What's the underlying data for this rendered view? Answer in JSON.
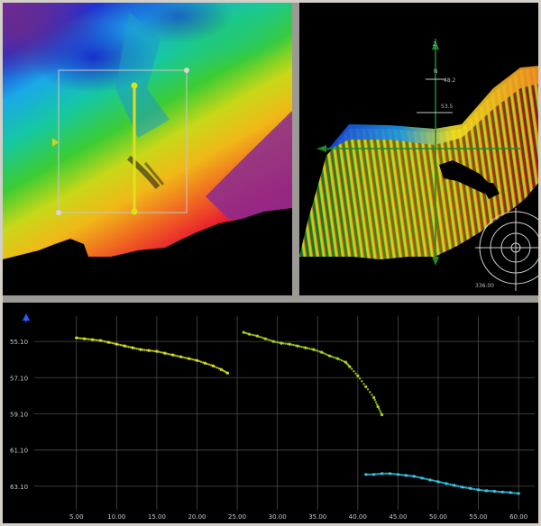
{
  "map_view": {
    "colors": {
      "terrain_black": "#000000",
      "selection_box": "#c8c8c8",
      "profile_line": "#e0e020"
    }
  },
  "view_3d": {
    "labels": {
      "z_axis": "Z",
      "n_axis": "N",
      "depth_a": "48.2",
      "depth_b": "53.5",
      "scale": "336.00"
    },
    "colors": {
      "axis_green": "#1f8a2a"
    }
  },
  "profile_plot": {
    "colors": {
      "axis_arrow": "#2a5cff",
      "grid": "#4a4a4a",
      "series_a": "#d8e020",
      "series_b": "#a8d820",
      "series_c": "#38c8e8"
    },
    "chart_data": {
      "type": "scatter",
      "xlim": [
        2,
        62
      ],
      "ylim": [
        54.2,
        64.4
      ],
      "y_inverted": true,
      "grid": true,
      "x_ticks": [
        "5.00",
        "10.00",
        "15.00",
        "20.00",
        "25.00",
        "30.00",
        "35.00",
        "40.00",
        "45.00",
        "50.00",
        "55.00",
        "60.00"
      ],
      "y_ticks": [
        "55.10",
        "57.10",
        "59.10",
        "61.10",
        "63.10"
      ],
      "series": [
        {
          "points": [
            [
              5.0,
              54.9
            ],
            [
              6.0,
              54.95
            ],
            [
              7.0,
              55.0
            ],
            [
              8.0,
              55.05
            ],
            [
              9.0,
              55.15
            ],
            [
              10.0,
              55.25
            ],
            [
              11.0,
              55.35
            ],
            [
              12.0,
              55.45
            ],
            [
              13.0,
              55.55
            ],
            [
              14.0,
              55.6
            ],
            [
              15.0,
              55.65
            ],
            [
              16.0,
              55.75
            ],
            [
              17.0,
              55.85
            ],
            [
              18.0,
              55.95
            ],
            [
              19.0,
              56.05
            ],
            [
              20.0,
              56.15
            ],
            [
              21.0,
              56.3
            ],
            [
              22.0,
              56.45
            ],
            [
              23.0,
              56.65
            ],
            [
              23.8,
              56.85
            ]
          ]
        },
        {
          "points": [
            [
              25.8,
              54.6
            ],
            [
              26.5,
              54.7
            ],
            [
              27.5,
              54.8
            ],
            [
              28.5,
              54.95
            ],
            [
              29.5,
              55.1
            ],
            [
              30.5,
              55.2
            ],
            [
              31.5,
              55.25
            ],
            [
              32.5,
              55.35
            ],
            [
              33.5,
              55.45
            ],
            [
              34.5,
              55.55
            ],
            [
              35.5,
              55.7
            ],
            [
              36.5,
              55.9
            ],
            [
              37.5,
              56.05
            ],
            [
              38.5,
              56.25
            ],
            [
              39.0,
              56.5
            ],
            [
              40.0,
              57.0
            ],
            [
              41.0,
              57.6
            ],
            [
              42.0,
              58.2
            ],
            [
              42.5,
              58.7
            ],
            [
              43.0,
              59.15
            ]
          ]
        },
        {
          "points": [
            [
              41.0,
              62.45
            ],
            [
              42.0,
              62.45
            ],
            [
              43.0,
              62.4
            ],
            [
              44.0,
              62.4
            ],
            [
              45.0,
              62.45
            ],
            [
              46.0,
              62.5
            ],
            [
              47.0,
              62.55
            ],
            [
              48.0,
              62.65
            ],
            [
              49.0,
              62.75
            ],
            [
              50.0,
              62.85
            ],
            [
              51.0,
              62.95
            ],
            [
              52.0,
              63.05
            ],
            [
              53.0,
              63.15
            ],
            [
              54.0,
              63.22
            ],
            [
              55.0,
              63.3
            ],
            [
              56.0,
              63.35
            ],
            [
              57.0,
              63.38
            ],
            [
              58.0,
              63.42
            ],
            [
              59.0,
              63.45
            ],
            [
              60.0,
              63.5
            ]
          ]
        }
      ]
    }
  }
}
